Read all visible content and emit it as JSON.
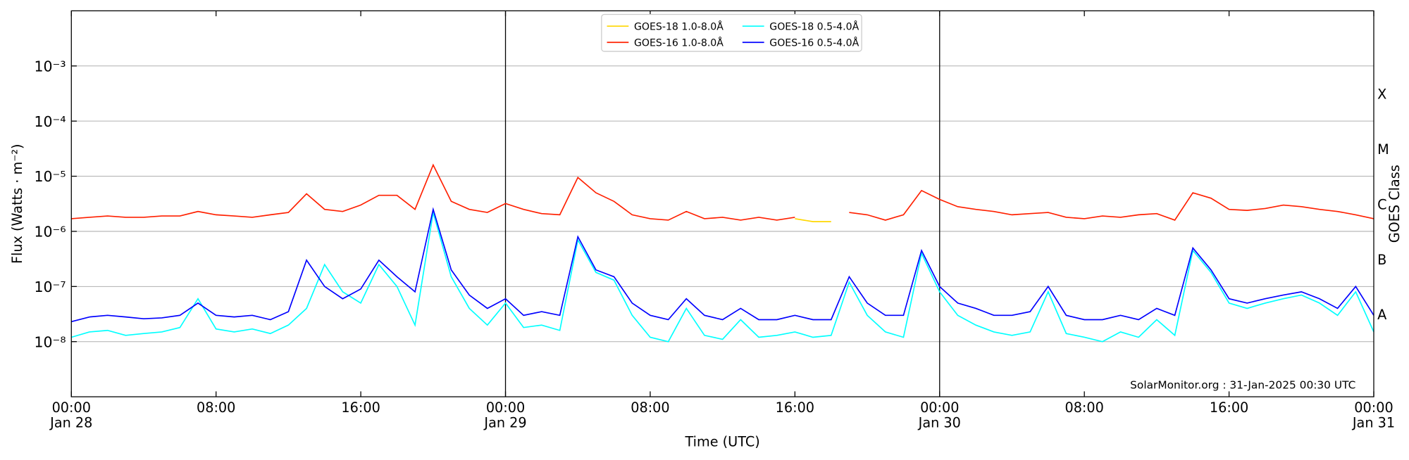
{
  "chart_data": {
    "type": "line",
    "y_label": "Flux (Watts · m⁻²)",
    "y2_label": "GOES Class",
    "x_label": "Time (UTC)",
    "annotation": "SolarMonitor.org : 31-Jan-2025 00:30 UTC",
    "log_scale": true,
    "grid": true,
    "legend": "upper center",
    "xlim": [
      "Jan 28 00:00",
      "Jan 31 00:00"
    ],
    "xticks": [
      {
        "value": "Jan 28 00:00",
        "label": "00:00\nJan 28"
      },
      {
        "value": "Jan 28 08:00",
        "label": "08:00"
      },
      {
        "value": "Jan 28 16:00",
        "label": "16:00"
      },
      {
        "value": "Jan 29 00:00",
        "label": "00:00\nJan 29"
      },
      {
        "value": "Jan 29 08:00",
        "label": "08:00"
      },
      {
        "value": "Jan 29 16:00",
        "label": "16:00"
      },
      {
        "value": "Jan 30 00:00",
        "label": "00:00\nJan 30"
      },
      {
        "value": "Jan 30 08:00",
        "label": "08:00"
      },
      {
        "value": "Jan 30 16:00",
        "label": "16:00"
      },
      {
        "value": "Jan 31 00:00",
        "label": "00:00\nJan 31"
      }
    ],
    "vlines": [
      "Jan 29 00:00",
      "Jan 30 00:00"
    ],
    "ylim": [
      1e-09,
      0.01
    ],
    "yticks": [
      {
        "value": 1e-08,
        "label": "10⁻⁸"
      },
      {
        "value": 1e-07,
        "label": "10⁻⁷"
      },
      {
        "value": 1e-06,
        "label": "10⁻⁶"
      },
      {
        "value": 1e-05,
        "label": "10⁻⁵"
      },
      {
        "value": 0.0001,
        "label": "10⁻⁴"
      },
      {
        "value": 0.001,
        "label": "10⁻³"
      }
    ],
    "y2lim": [
      1e-09,
      0.01
    ],
    "y2ticks": [
      {
        "value": 3.16e-08,
        "label": "A"
      },
      {
        "value": 3.16e-07,
        "label": "B"
      },
      {
        "value": 3.16e-06,
        "label": "C"
      },
      {
        "value": 3.16e-05,
        "label": "M"
      },
      {
        "value": 0.000316,
        "label": "X"
      }
    ],
    "x": [
      "Jan 28 00:00",
      "Jan 28 01:00",
      "Jan 28 02:00",
      "Jan 28 03:00",
      "Jan 28 04:00",
      "Jan 28 05:00",
      "Jan 28 06:00",
      "Jan 28 07:00",
      "Jan 28 08:00",
      "Jan 28 09:00",
      "Jan 28 10:00",
      "Jan 28 11:00",
      "Jan 28 12:00",
      "Jan 28 13:00",
      "Jan 28 14:00",
      "Jan 28 15:00",
      "Jan 28 16:00",
      "Jan 28 17:00",
      "Jan 28 18:00",
      "Jan 28 19:00",
      "Jan 28 20:00",
      "Jan 28 21:00",
      "Jan 28 22:00",
      "Jan 28 23:00",
      "Jan 29 00:00",
      "Jan 29 01:00",
      "Jan 29 02:00",
      "Jan 29 03:00",
      "Jan 29 04:00",
      "Jan 29 05:00",
      "Jan 29 06:00",
      "Jan 29 07:00",
      "Jan 29 08:00",
      "Jan 29 09:00",
      "Jan 29 10:00",
      "Jan 29 11:00",
      "Jan 29 12:00",
      "Jan 29 13:00",
      "Jan 29 14:00",
      "Jan 29 15:00",
      "Jan 29 16:00",
      "Jan 29 17:00",
      "Jan 29 18:00",
      "Jan 29 19:00",
      "Jan 29 20:00",
      "Jan 29 21:00",
      "Jan 29 22:00",
      "Jan 29 23:00",
      "Jan 30 00:00",
      "Jan 30 01:00",
      "Jan 30 02:00",
      "Jan 30 03:00",
      "Jan 30 04:00",
      "Jan 30 05:00",
      "Jan 30 06:00",
      "Jan 30 07:00",
      "Jan 30 08:00",
      "Jan 30 09:00",
      "Jan 30 10:00",
      "Jan 30 11:00",
      "Jan 30 12:00",
      "Jan 30 13:00",
      "Jan 30 14:00",
      "Jan 30 15:00",
      "Jan 30 16:00",
      "Jan 30 17:00",
      "Jan 30 18:00",
      "Jan 30 19:00",
      "Jan 30 20:00",
      "Jan 30 21:00",
      "Jan 30 22:00",
      "Jan 30 23:00",
      "Jan 31 00:00"
    ],
    "series": [
      {
        "name": "GOES-18 1.0-8.0Å",
        "color": "#ffd700",
        "values": [
          null,
          null,
          null,
          null,
          null,
          null,
          null,
          null,
          null,
          null,
          null,
          null,
          null,
          null,
          null,
          null,
          null,
          null,
          null,
          null,
          null,
          null,
          null,
          null,
          null,
          null,
          null,
          null,
          null,
          null,
          null,
          null,
          null,
          null,
          null,
          null,
          null,
          null,
          null,
          null,
          1.7e-06,
          1.5e-06,
          1.5e-06,
          null,
          null,
          null,
          null,
          null,
          null,
          null,
          null,
          null,
          null,
          null,
          null,
          null,
          null,
          null,
          null,
          null,
          null,
          null,
          null,
          null,
          null,
          null,
          null,
          null,
          null,
          null,
          null,
          null,
          null
        ]
      },
      {
        "name": "GOES-16 1.0-8.0Å",
        "color": "#ff2000",
        "values": [
          1.7e-06,
          1.8e-06,
          1.9e-06,
          1.8e-06,
          1.8e-06,
          1.9e-06,
          1.9e-06,
          2.3e-06,
          2e-06,
          1.9e-06,
          1.8e-06,
          2e-06,
          2.2e-06,
          4.8e-06,
          2.5e-06,
          2.3e-06,
          3e-06,
          4.5e-06,
          4.5e-06,
          2.5e-06,
          1.6e-05,
          3.5e-06,
          2.5e-06,
          2.2e-06,
          3.2e-06,
          2.5e-06,
          2.1e-06,
          2e-06,
          9.5e-06,
          5e-06,
          3.5e-06,
          2e-06,
          1.7e-06,
          1.6e-06,
          2.3e-06,
          1.7e-06,
          1.8e-06,
          1.6e-06,
          1.8e-06,
          1.6e-06,
          1.8e-06,
          null,
          null,
          2.2e-06,
          2e-06,
          1.6e-06,
          2e-06,
          5.5e-06,
          3.8e-06,
          2.8e-06,
          2.5e-06,
          2.3e-06,
          2e-06,
          2.1e-06,
          2.2e-06,
          1.8e-06,
          1.7e-06,
          1.9e-06,
          1.8e-06,
          2e-06,
          2.1e-06,
          1.6e-06,
          5e-06,
          4e-06,
          2.5e-06,
          2.4e-06,
          2.6e-06,
          3e-06,
          2.8e-06,
          2.5e-06,
          2.3e-06,
          2e-06,
          1.7e-06
        ]
      },
      {
        "name": "GOES-18 0.5-4.0Å",
        "color": "#00ffff",
        "values": [
          1.2e-08,
          1.5e-08,
          1.6e-08,
          1.3e-08,
          1.4e-08,
          1.5e-08,
          1.8e-08,
          6e-08,
          1.7e-08,
          1.5e-08,
          1.7e-08,
          1.4e-08,
          2e-08,
          4e-08,
          2.5e-07,
          8e-08,
          5e-08,
          2.5e-07,
          1e-07,
          2e-08,
          2.2e-06,
          1.5e-07,
          4e-08,
          2e-08,
          5e-08,
          1.8e-08,
          2e-08,
          1.6e-08,
          7e-07,
          1.8e-07,
          1.3e-07,
          3e-08,
          1.2e-08,
          1e-08,
          4e-08,
          1.3e-08,
          1.1e-08,
          2.5e-08,
          1.2e-08,
          1.3e-08,
          1.5e-08,
          1.2e-08,
          1.3e-08,
          1.2e-07,
          3e-08,
          1.5e-08,
          1.2e-08,
          4e-07,
          8e-08,
          3e-08,
          2e-08,
          1.5e-08,
          1.3e-08,
          1.5e-08,
          8e-08,
          1.4e-08,
          1.2e-08,
          1e-08,
          1.5e-08,
          1.2e-08,
          2.5e-08,
          1.3e-08,
          4.5e-07,
          1.8e-07,
          5e-08,
          4e-08,
          5e-08,
          6e-08,
          7e-08,
          5e-08,
          3e-08,
          8e-08,
          1.5e-08
        ]
      },
      {
        "name": "GOES-16 0.5-4.0Å",
        "color": "#0000ff",
        "values": [
          2.3e-08,
          2.8e-08,
          3e-08,
          2.8e-08,
          2.6e-08,
          2.7e-08,
          3e-08,
          5e-08,
          3e-08,
          2.8e-08,
          3e-08,
          2.5e-08,
          3.5e-08,
          3e-07,
          1e-07,
          6e-08,
          9e-08,
          3e-07,
          1.5e-07,
          8e-08,
          2.5e-06,
          2e-07,
          7e-08,
          4e-08,
          6e-08,
          3e-08,
          3.5e-08,
          3e-08,
          8e-07,
          2e-07,
          1.5e-07,
          5e-08,
          3e-08,
          2.5e-08,
          6e-08,
          3e-08,
          2.5e-08,
          4e-08,
          2.5e-08,
          2.5e-08,
          3e-08,
          2.5e-08,
          2.5e-08,
          1.5e-07,
          5e-08,
          3e-08,
          3e-08,
          4.5e-07,
          1e-07,
          5e-08,
          4e-08,
          3e-08,
          3e-08,
          3.5e-08,
          1e-07,
          3e-08,
          2.5e-08,
          2.5e-08,
          3e-08,
          2.5e-08,
          4e-08,
          3e-08,
          5e-07,
          2e-07,
          6e-08,
          5e-08,
          6e-08,
          7e-08,
          8e-08,
          6e-08,
          4e-08,
          1e-07,
          3e-08
        ]
      }
    ]
  }
}
